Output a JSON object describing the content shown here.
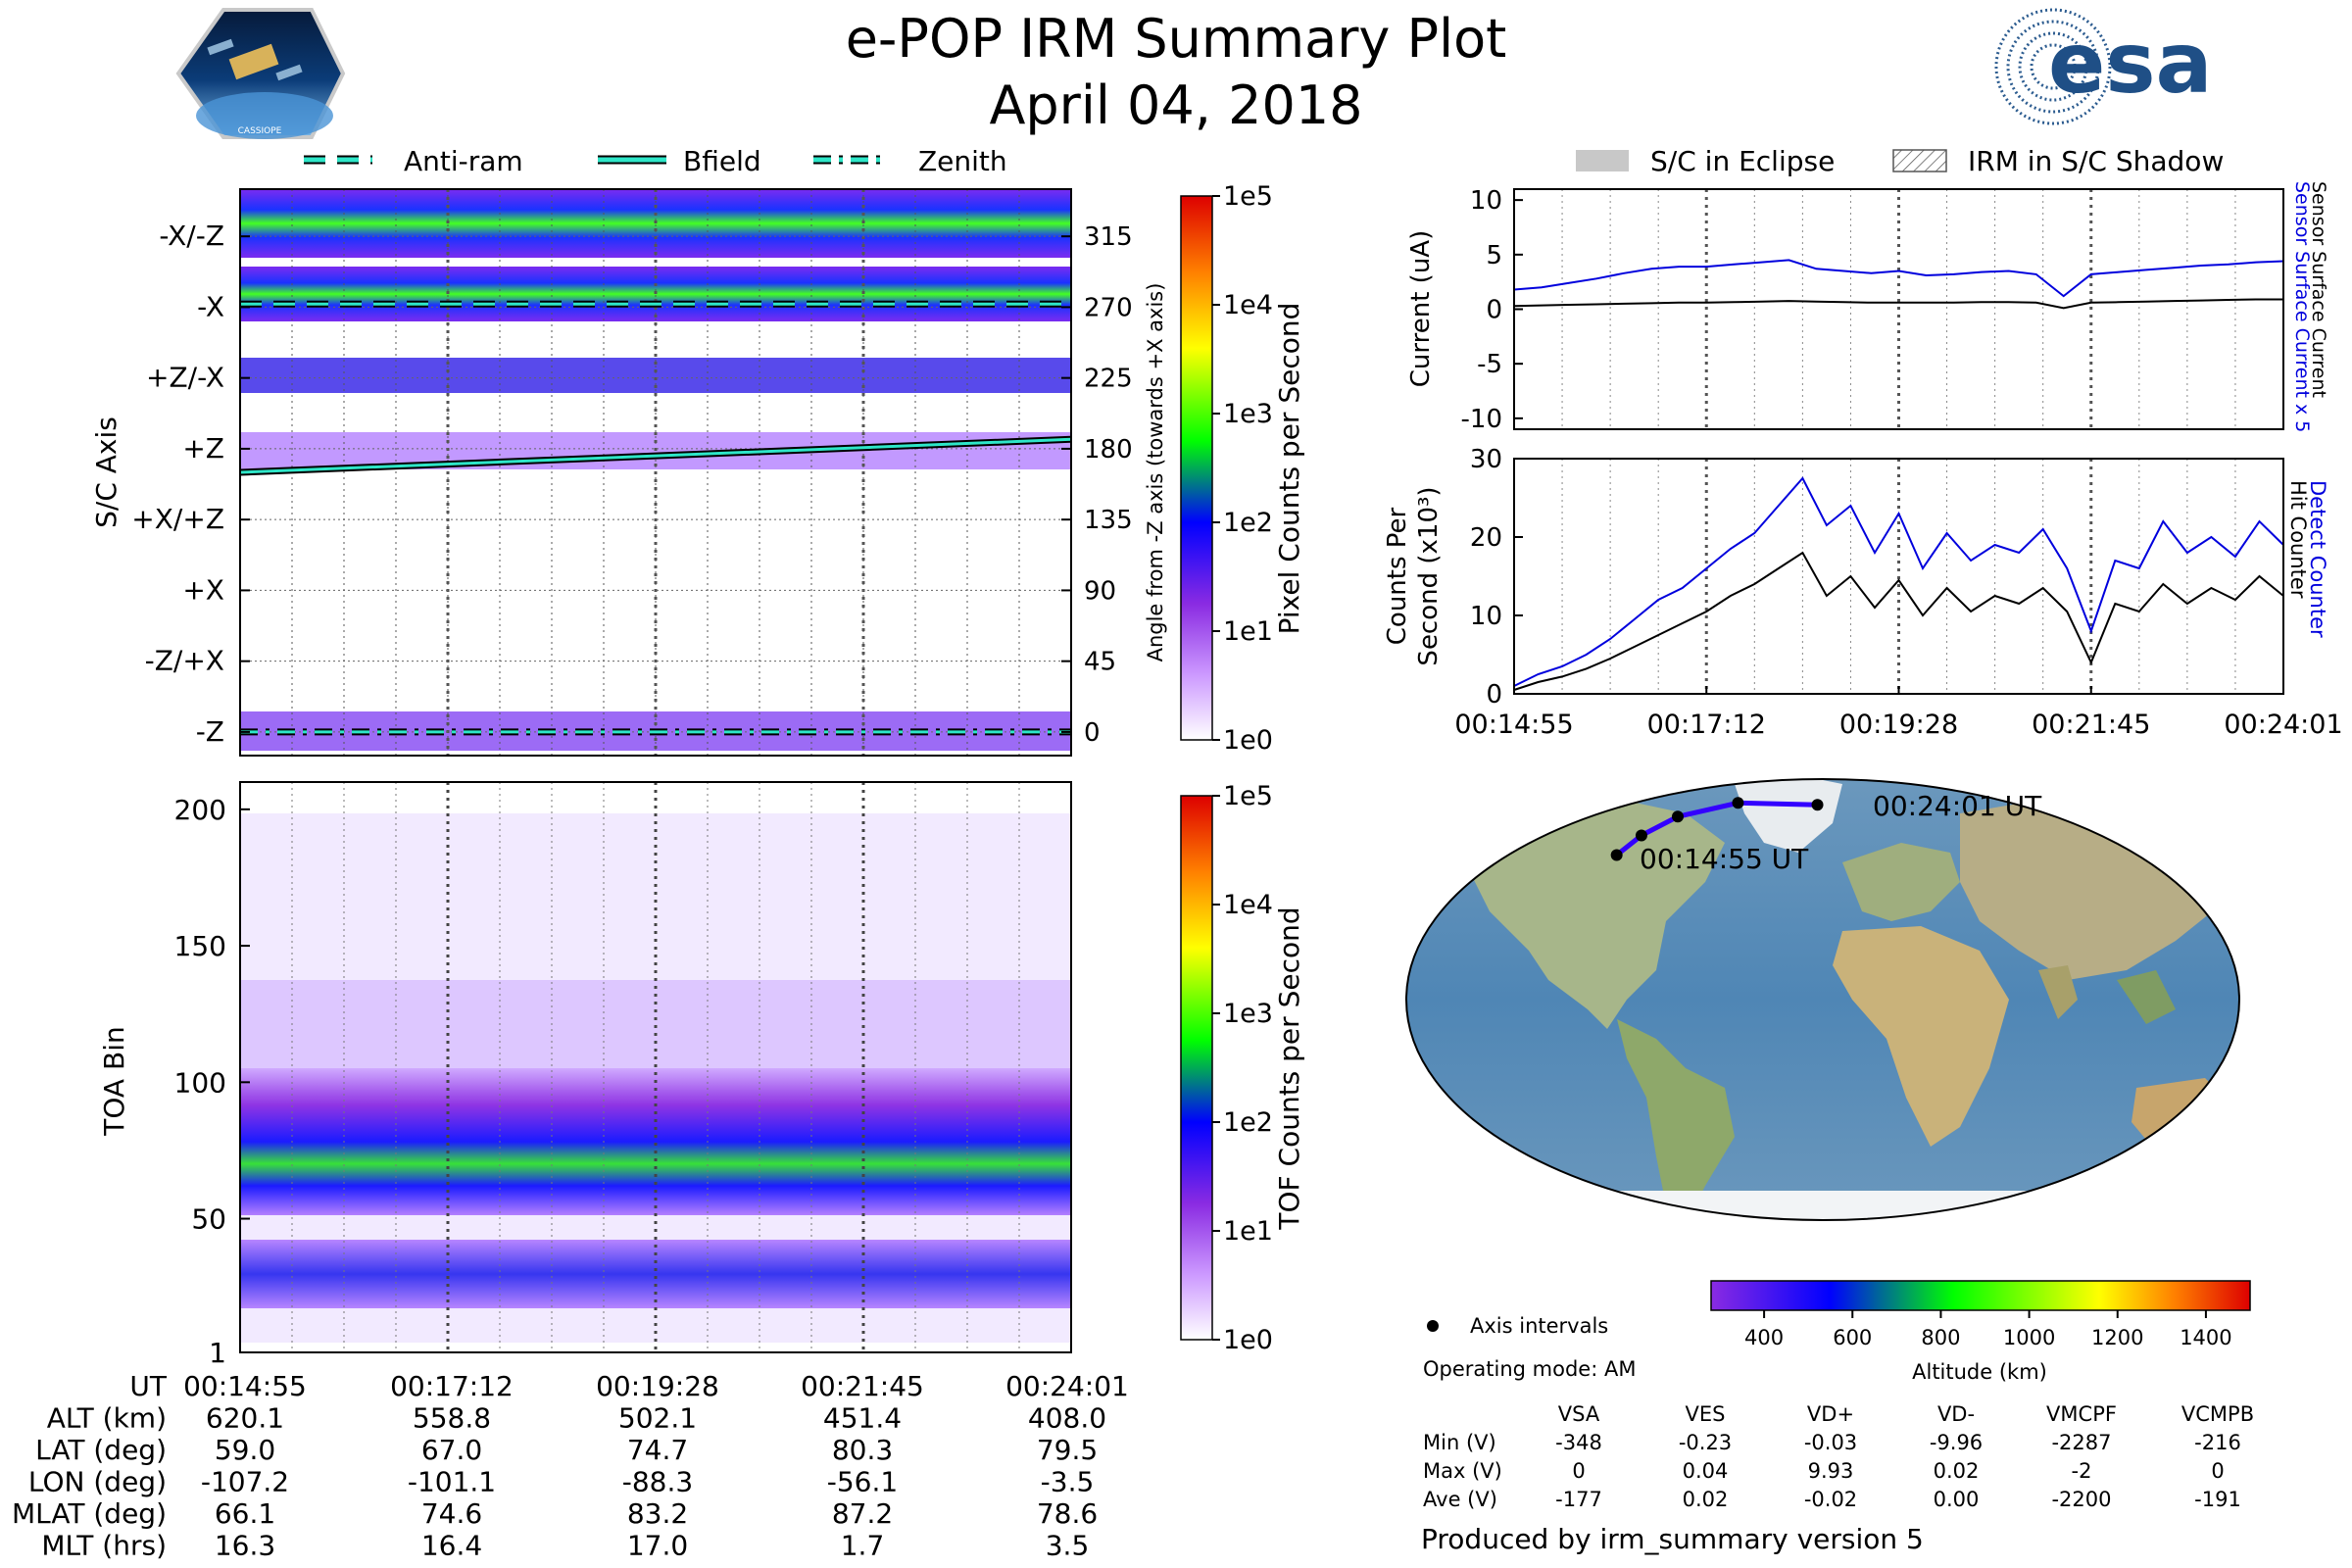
{
  "header": {
    "title": "e-POP IRM Summary Plot",
    "date": "April 04, 2018",
    "mission_badge": "CASSIOPE",
    "agency_logo": "esa"
  },
  "colors": {
    "blue": "#0000dd",
    "black": "#000000",
    "teal": "#2ee6c8",
    "orbit": "#3300ff"
  },
  "legend": {
    "top_left": [
      "Anti-ram",
      "Bfield",
      "Zenith"
    ],
    "top_right": [
      "S/C in Eclipse",
      "IRM in S/C Shadow"
    ]
  },
  "chart_data": [
    {
      "id": "pixel-spectrogram",
      "type": "heatmap",
      "ylabel": "S/C Axis",
      "y_tick_labels": [
        "-X/-Z",
        "-X",
        "+Z/-X",
        "+Z",
        "+X/+Z",
        "+X",
        "-Z/+X",
        "-Z"
      ],
      "y2label": "Angle from -Z axis (towards +X axis)",
      "y2_ticks": [
        315,
        270,
        225,
        180,
        135,
        90,
        45,
        0
      ],
      "ylim": [
        -15,
        345
      ],
      "colorbar_label": "Pixel Counts per Second",
      "colorbar_ticks": [
        "1e5",
        "1e4",
        "1e3",
        "1e2",
        "1e1",
        "1e0"
      ],
      "bfield_angle": [
        165,
        186
      ],
      "antiram_angle": 272,
      "zenith_angle": 0
    },
    {
      "id": "tof-spectrogram",
      "type": "heatmap",
      "ylabel": "TOA Bin",
      "y_ticks": [
        200,
        150,
        100,
        50,
        1
      ],
      "ylim": [
        1,
        210
      ],
      "colorbar_label": "TOF Counts per Second",
      "colorbar_ticks": [
        "1e5",
        "1e4",
        "1e3",
        "1e2",
        "1e1",
        "1e0"
      ]
    },
    {
      "id": "current",
      "type": "line",
      "ylabel": "Current (uA)",
      "y_ticks": [
        10,
        5,
        0,
        -5,
        -10
      ],
      "ylim": [
        -11,
        11
      ],
      "right_labels": [
        "Sensor Surface Current x 5",
        "Sensor Surface Current"
      ],
      "series": [
        {
          "name": "Sensor Surface Current x 5",
          "color": "#0000dd",
          "values": [
            1.8,
            2.0,
            2.4,
            2.8,
            3.3,
            3.7,
            3.9,
            3.9,
            4.1,
            4.3,
            4.5,
            3.7,
            3.5,
            3.3,
            3.5,
            3.1,
            3.2,
            3.4,
            3.5,
            3.2,
            1.2,
            3.2,
            3.4,
            3.6,
            3.8,
            4.0,
            4.1,
            4.3,
            4.4
          ]
        },
        {
          "name": "Sensor Surface Current",
          "color": "#000000",
          "values": [
            0.3,
            0.35,
            0.4,
            0.45,
            0.5,
            0.55,
            0.6,
            0.6,
            0.65,
            0.7,
            0.75,
            0.7,
            0.65,
            0.6,
            0.6,
            0.6,
            0.6,
            0.65,
            0.65,
            0.6,
            0.1,
            0.6,
            0.65,
            0.7,
            0.75,
            0.8,
            0.85,
            0.9,
            0.9
          ]
        }
      ]
    },
    {
      "id": "counts",
      "type": "line",
      "ylabel": "Counts Per Second (x10³)",
      "ylabel_lines": [
        "Counts Per",
        "Second (x10³)"
      ],
      "y_ticks": [
        30,
        20,
        10,
        0
      ],
      "ylim": [
        0,
        30
      ],
      "right_labels": [
        "Detect Counter",
        "Hit Counter"
      ],
      "x_tick_labels": [
        "00:14:55",
        "00:17:12",
        "00:19:28",
        "00:21:45",
        "00:24:01"
      ],
      "series": [
        {
          "name": "Detect Counter",
          "color": "#0000dd",
          "values": [
            1.0,
            2.5,
            3.5,
            5.0,
            7.0,
            9.5,
            12.0,
            13.5,
            16.0,
            18.5,
            20.5,
            24.0,
            27.5,
            21.5,
            24.0,
            18.0,
            23.0,
            16.0,
            20.5,
            17.0,
            19.0,
            18.0,
            21.0,
            16.0,
            8.0,
            17.0,
            16.0,
            22.0,
            18.0,
            20.0,
            17.5,
            22.0,
            19.0
          ]
        },
        {
          "name": "Hit Counter",
          "color": "#000000",
          "values": [
            0.5,
            1.5,
            2.2,
            3.2,
            4.5,
            6.0,
            7.5,
            9.0,
            10.5,
            12.5,
            14.0,
            16.0,
            18.0,
            12.5,
            15.0,
            11.0,
            14.5,
            10.0,
            13.5,
            10.5,
            12.5,
            11.5,
            13.5,
            10.5,
            4.0,
            11.5,
            10.5,
            14.0,
            11.5,
            13.5,
            12.0,
            15.0,
            12.5
          ]
        }
      ]
    },
    {
      "id": "orbit-map",
      "type": "scatter",
      "start_label": "00:14:55 UT",
      "end_label": "00:24:01 UT",
      "points": [
        {
          "lon": -107.2,
          "lat": 59.0
        },
        {
          "lon": -101.1,
          "lat": 67.0
        },
        {
          "lon": -88.3,
          "lat": 74.7
        },
        {
          "lon": -56.1,
          "lat": 80.3
        },
        {
          "lon": -3.5,
          "lat": 79.5
        }
      ],
      "altitude_colorbar": {
        "label": "Altitude (km)",
        "ticks": [
          400,
          600,
          800,
          1000,
          1200,
          1400
        ],
        "range": [
          280,
          1500
        ]
      }
    }
  ],
  "ephemeris": {
    "labels": [
      "UT",
      "ALT (km)",
      "LAT (deg)",
      "LON (deg)",
      "MLAT (deg)",
      "MLT (hrs)"
    ],
    "columns": [
      [
        "00:14:55",
        "620.1",
        "59.0",
        "-107.2",
        "66.1",
        "16.3"
      ],
      [
        "00:17:12",
        "558.8",
        "67.0",
        "-101.1",
        "74.6",
        "16.4"
      ],
      [
        "00:19:28",
        "502.1",
        "74.7",
        "-88.3",
        "83.2",
        "17.0"
      ],
      [
        "00:21:45",
        "451.4",
        "80.3",
        "-56.1",
        "87.2",
        "1.7"
      ],
      [
        "00:24:01",
        "408.0",
        "79.5",
        "-3.5",
        "78.6",
        "3.5"
      ]
    ]
  },
  "info": {
    "axis_intervals": "Axis intervals",
    "operating_mode": "Operating mode: AM",
    "voltage_headers": [
      "VSA",
      "VES",
      "VD+",
      "VD-",
      "VMCPF",
      "VCMPB"
    ],
    "voltage_rows": [
      {
        "label": "Min (V)",
        "values": [
          "-348",
          "-0.23",
          "-0.03",
          "-9.96",
          "-2287",
          "-216"
        ]
      },
      {
        "label": "Max (V)",
        "values": [
          "0",
          "0.04",
          "9.93",
          "0.02",
          "-2",
          "0"
        ]
      },
      {
        "label": "Ave (V)",
        "values": [
          "-177",
          "0.02",
          "-0.02",
          "0.00",
          "-2200",
          "-191"
        ]
      }
    ],
    "produced_by": "Produced by irm_summary version 5"
  }
}
